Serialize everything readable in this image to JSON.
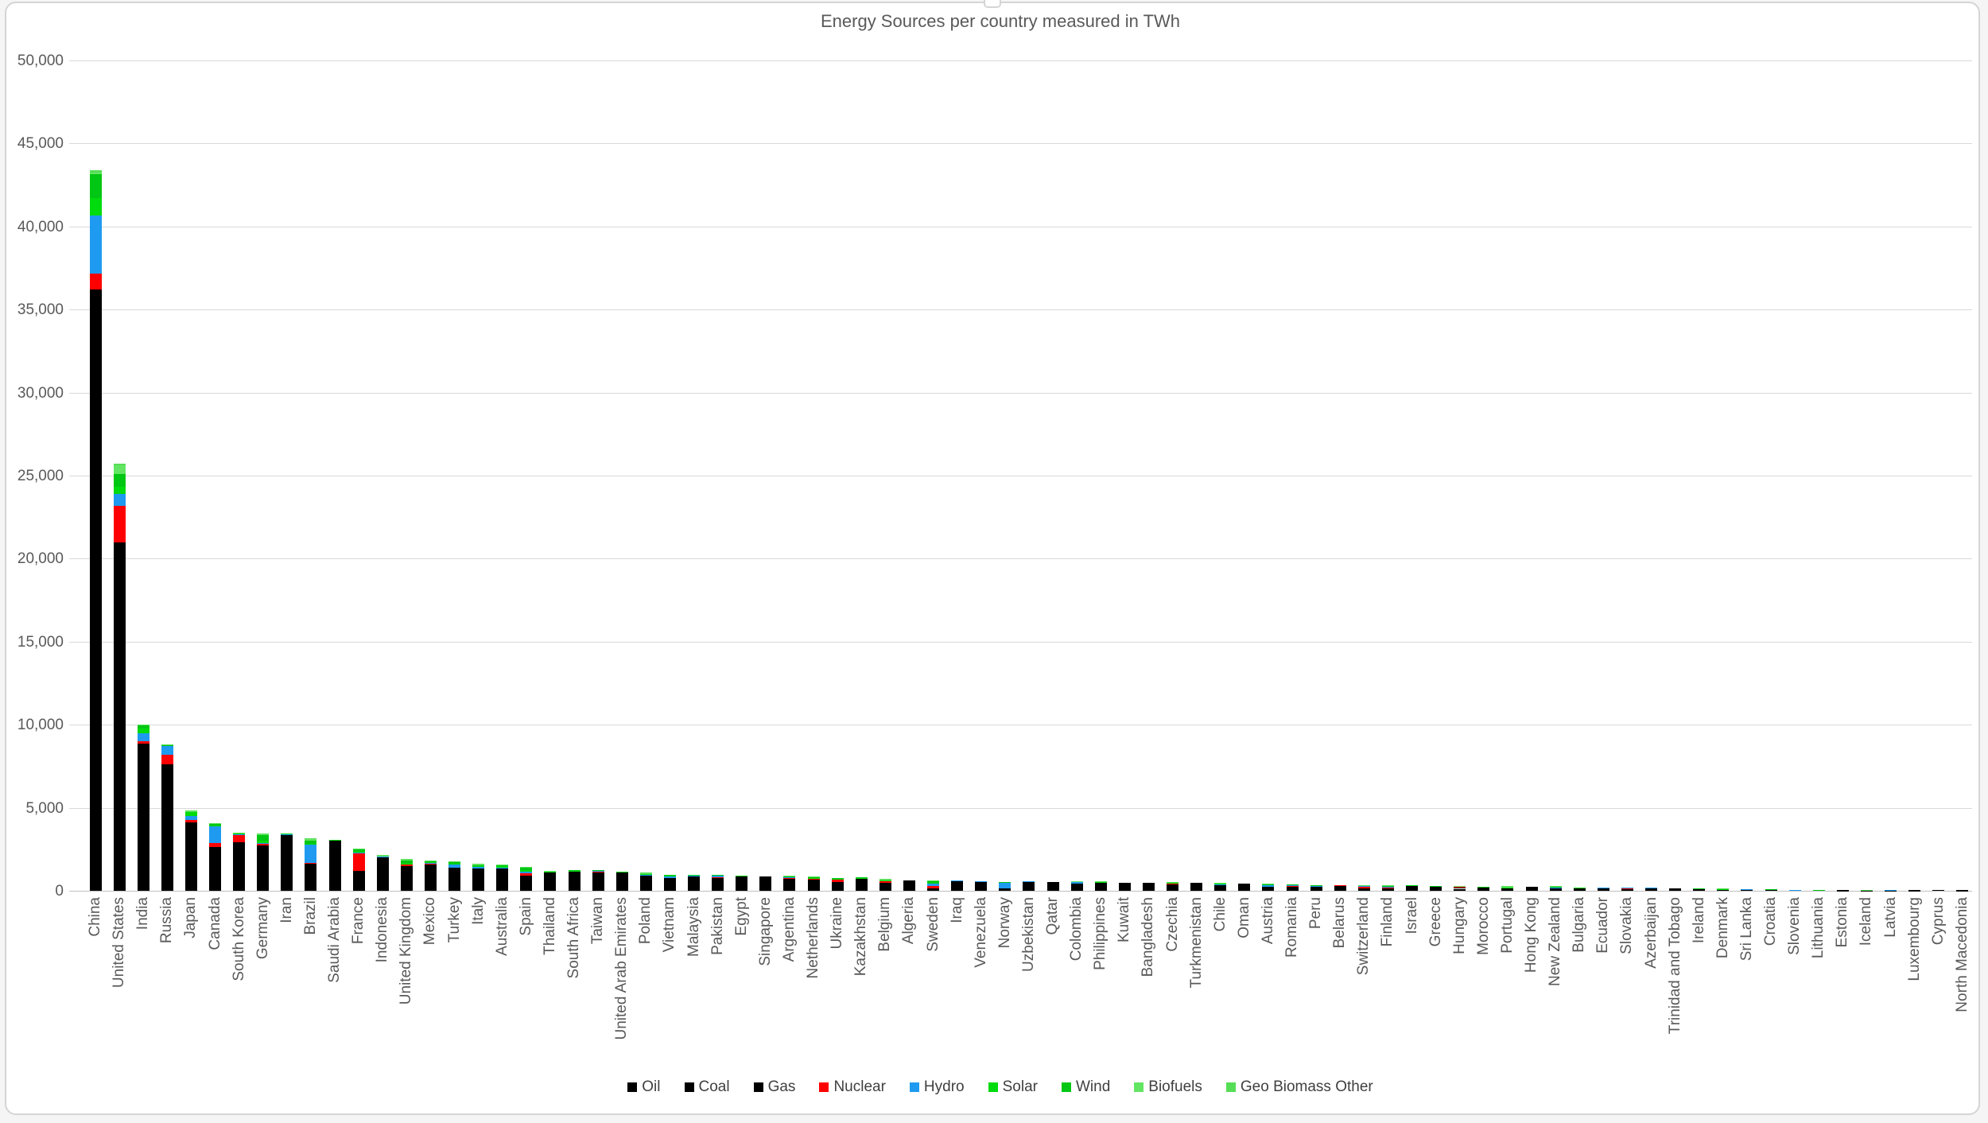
{
  "title": "Energy Sources per country measured in TWh",
  "chart_data": {
    "type": "bar",
    "stacked": true,
    "unit": "TWh",
    "xlabel": "",
    "ylabel": "",
    "ylim": [
      0,
      50000
    ],
    "grid": true,
    "legend_position": "bottom",
    "yticks": [
      0,
      5000,
      10000,
      15000,
      20000,
      25000,
      30000,
      35000,
      40000,
      45000,
      50000
    ],
    "ytick_labels": [
      "0",
      "5,000",
      "10,000",
      "15,000",
      "20,000",
      "25,000",
      "30,000",
      "35,000",
      "40,000",
      "45,000",
      "50,000"
    ],
    "categories": [
      "China",
      "United States",
      "India",
      "Russia",
      "Japan",
      "Canada",
      "South Korea",
      "Germany",
      "Iran",
      "Brazil",
      "Saudi Arabia",
      "France",
      "Indonesia",
      "United Kingdom",
      "Mexico",
      "Turkey",
      "Italy",
      "Australia",
      "Spain",
      "Thailand",
      "South Africa",
      "Taiwan",
      "United Arab Emirates",
      "Poland",
      "Vietnam",
      "Malaysia",
      "Pakistan",
      "Egypt",
      "Singapore",
      "Argentina",
      "Netherlands",
      "Ukraine",
      "Kazakhstan",
      "Belgium",
      "Algeria",
      "Sweden",
      "Iraq",
      "Venezuela",
      "Norway",
      "Uzbekistan",
      "Qatar",
      "Colombia",
      "Philippines",
      "Kuwait",
      "Bangladesh",
      "Czechia",
      "Turkmenistan",
      "Chile",
      "Oman",
      "Austria",
      "Romania",
      "Peru",
      "Belarus",
      "Switzerland",
      "Finland",
      "Israel",
      "Greece",
      "Hungary",
      "Morocco",
      "Portugal",
      "Hong Kong",
      "New Zealand",
      "Bulgaria",
      "Ecuador",
      "Slovakia",
      "Azerbaijan",
      "Trinidad and Tobago",
      "Ireland",
      "Denmark",
      "Sri Lanka",
      "Croatia",
      "Slovenia",
      "Lithuania",
      "Estonia",
      "Iceland",
      "Latvia",
      "Luxembourg",
      "Cyprus",
      "North Macedonia"
    ],
    "series": [
      {
        "name": "Oil",
        "color": "#000000",
        "values": [
          8500,
          9900,
          2700,
          1950,
          1900,
          1240,
          1420,
          1160,
          900,
          1200,
          1780,
          780,
          750,
          740,
          850,
          530,
          660,
          560,
          600,
          570,
          500,
          430,
          460,
          350,
          260,
          320,
          260,
          360,
          740,
          320,
          380,
          120,
          170,
          310,
          180,
          130,
          430,
          320,
          90,
          80,
          140,
          240,
          240,
          310,
          130,
          175,
          90,
          190,
          130,
          140,
          120,
          130,
          120,
          120,
          110,
          130,
          170,
          100,
          160,
          130,
          130,
          90,
          60,
          120,
          50,
          60,
          35,
          80,
          65,
          60,
          50,
          25,
          35,
          15,
          10,
          15,
          20,
          25,
          15
        ]
      },
      {
        "name": "Coal",
        "color": "#000000",
        "values": [
          23900,
          2750,
          5600,
          960,
          1290,
          120,
          850,
          770,
          45,
          160,
          2,
          50,
          950,
          55,
          110,
          450,
          70,
          420,
          25,
          180,
          630,
          450,
          35,
          420,
          450,
          300,
          180,
          20,
          5,
          15,
          55,
          160,
          380,
          25,
          5,
          20,
          0,
          1,
          10,
          30,
          0,
          80,
          210,
          2,
          50,
          140,
          0,
          90,
          2,
          30,
          40,
          15,
          5,
          5,
          30,
          40,
          20,
          20,
          60,
          2,
          70,
          15,
          60,
          0,
          20,
          0,
          0,
          5,
          10,
          25,
          5,
          10,
          2,
          15,
          1,
          0,
          1,
          0,
          10
        ]
      },
      {
        "name": "Gas",
        "color": "#000000",
        "values": [
          3800,
          8350,
          560,
          4700,
          950,
          1270,
          640,
          800,
          2430,
          300,
          1285,
          380,
          330,
          680,
          620,
          430,
          620,
          370,
          290,
          390,
          40,
          230,
          590,
          200,
          70,
          260,
          350,
          470,
          120,
          420,
          280,
          240,
          210,
          160,
          450,
          10,
          180,
          210,
          40,
          430,
          390,
          110,
          35,
          190,
          300,
          80,
          400,
          60,
          280,
          80,
          120,
          110,
          190,
          40,
          20,
          130,
          60,
          90,
          10,
          50,
          50,
          40,
          30,
          15,
          50,
          120,
          130,
          45,
          15,
          0,
          25,
          10,
          15,
          5,
          0,
          10,
          5,
          0,
          3
        ]
      },
      {
        "name": "Nuclear",
        "color": "#ff0000",
        "values": [
          950,
          2200,
          130,
          590,
          140,
          240,
          480,
          90,
          18,
          40,
          0,
          1020,
          0,
          125,
          28,
          0,
          0,
          0,
          150,
          0,
          25,
          80,
          55,
          0,
          0,
          0,
          40,
          0,
          0,
          25,
          12,
          170,
          0,
          115,
          0,
          135,
          0,
          0,
          0,
          0,
          0,
          0,
          0,
          0,
          0,
          85,
          0,
          0,
          0,
          0,
          30,
          0,
          30,
          60,
          65,
          0,
          0,
          45,
          0,
          0,
          0,
          0,
          40,
          0,
          40,
          0,
          0,
          0,
          0,
          0,
          0,
          15,
          0,
          0,
          0,
          0,
          0,
          0,
          0
        ]
      },
      {
        "name": "Hydro",
        "color": "#1e9bf0",
        "values": [
          3500,
          700,
          480,
          560,
          210,
          1030,
          10,
          45,
          25,
          1060,
          0,
          90,
          65,
          15,
          85,
          180,
          75,
          40,
          70,
          15,
          2,
          8,
          0,
          5,
          90,
          65,
          100,
          40,
          0,
          60,
          0,
          30,
          25,
          1,
          1,
          170,
          10,
          65,
          360,
          15,
          0,
          130,
          25,
          0,
          2,
          5,
          0,
          50,
          0,
          105,
          40,
          85,
          1,
          90,
          35,
          0,
          15,
          1,
          2,
          15,
          0,
          60,
          10,
          65,
          10,
          5,
          0,
          2,
          0,
          15,
          15,
          10,
          1,
          0,
          20,
          5,
          0,
          0,
          2
        ]
      },
      {
        "name": "Solar",
        "color": "#00db0d",
        "values": [
          1050,
          450,
          280,
          5,
          260,
          20,
          75,
          160,
          10,
          60,
          8,
          50,
          2,
          35,
          45,
          40,
          70,
          85,
          105,
          15,
          15,
          25,
          25,
          25,
          70,
          12,
          10,
          15,
          3,
          8,
          50,
          15,
          5,
          20,
          2,
          5,
          2,
          0,
          0,
          2,
          2,
          2,
          5,
          1,
          2,
          6,
          0,
          45,
          3,
          10,
          10,
          5,
          1,
          10,
          2,
          25,
          15,
          15,
          5,
          15,
          0,
          1,
          10,
          0,
          2,
          0,
          0,
          1,
          10,
          2,
          1,
          2,
          1,
          1,
          0,
          0,
          0,
          2,
          1
        ]
      },
      {
        "name": "Wind",
        "color": "#00c713",
        "values": [
          1450,
          750,
          200,
          10,
          25,
          100,
          10,
          350,
          2,
          220,
          0,
          100,
          1,
          170,
          50,
          90,
          50,
          75,
          160,
          10,
          25,
          5,
          0,
          50,
          25,
          0,
          10,
          15,
          0,
          35,
          60,
          10,
          5,
          35,
          0,
          85,
          0,
          0,
          40,
          0,
          0,
          0,
          3,
          0,
          0,
          1,
          0,
          25,
          0,
          20,
          20,
          10,
          1,
          0,
          30,
          1,
          30,
          2,
          15,
          35,
          0,
          15,
          3,
          0,
          0,
          0,
          0,
          30,
          45,
          2,
          5,
          0,
          5,
          2,
          0,
          0,
          1,
          1,
          0
        ]
      },
      {
        "name": "Biofuels",
        "color": "#63e563",
        "values": [
          100,
          500,
          50,
          0,
          30,
          40,
          15,
          60,
          0,
          120,
          0,
          50,
          20,
          60,
          0,
          0,
          30,
          10,
          20,
          40,
          0,
          0,
          0,
          25,
          0,
          0,
          0,
          0,
          0,
          25,
          30,
          0,
          0,
          25,
          0,
          60,
          0,
          0,
          0,
          0,
          0,
          10,
          0,
          0,
          0,
          20,
          0,
          20,
          0,
          30,
          0,
          0,
          0,
          5,
          20,
          0,
          0,
          5,
          0,
          15,
          0,
          0,
          0,
          0,
          3,
          0,
          0,
          3,
          15,
          0,
          0,
          0,
          2,
          2,
          0,
          1,
          1,
          0,
          0
        ]
      },
      {
        "name": "Geo Biomass Other",
        "color": "#55de55",
        "values": [
          150,
          100,
          0,
          15,
          55,
          10,
          5,
          30,
          0,
          20,
          0,
          25,
          50,
          30,
          12,
          30,
          30,
          0,
          10,
          0,
          0,
          0,
          0,
          5,
          0,
          0,
          0,
          0,
          0,
          0,
          5,
          0,
          0,
          5,
          0,
          15,
          0,
          0,
          0,
          0,
          0,
          0,
          55,
          0,
          0,
          5,
          0,
          0,
          0,
          10,
          0,
          0,
          0,
          5,
          10,
          0,
          0,
          0,
          0,
          5,
          0,
          45,
          0,
          0,
          0,
          0,
          0,
          0,
          5,
          0,
          2,
          0,
          0,
          0,
          25,
          1,
          0,
          0,
          0
        ]
      }
    ],
    "axis_colors": {
      "tick_text": "#595959",
      "gridline": "#d9d9d9",
      "axis_line": "#bfbfbf",
      "title_text": "#595959",
      "legend_text": "#404040",
      "frame_border": "#d6d4d4"
    }
  }
}
